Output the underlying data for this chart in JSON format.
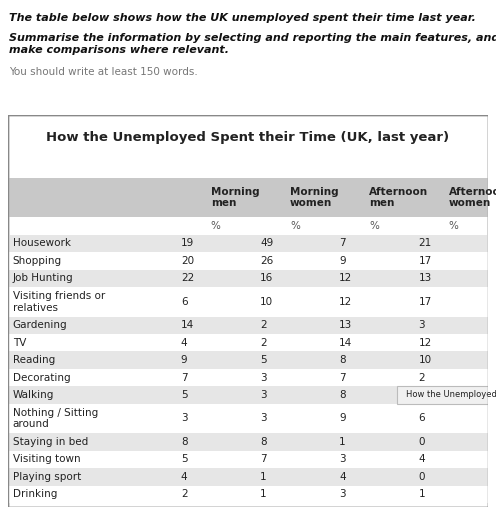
{
  "title": "How the Unemployed Spent their Time (UK, last year)",
  "prompt_line1": "The table below shows how the UK unemployed spent their time last year.",
  "prompt_line2": "Summarise the information by selecting and reporting the main features, and\nmake comparisons where relevant.",
  "prompt_line3": "You should write at least 150 words.",
  "columns": [
    "",
    "Morning\nmen",
    "Morning\nwomen",
    "Afternoon\nmen",
    "Afternoon\nwomen"
  ],
  "col_units": [
    "",
    "%",
    "%",
    "%",
    "%"
  ],
  "rows": [
    [
      "Housework",
      19,
      49,
      7,
      21,
      false
    ],
    [
      "Shopping",
      20,
      26,
      9,
      17,
      false
    ],
    [
      "Job Hunting",
      22,
      16,
      12,
      13,
      false
    ],
    [
      "Visiting friends or\nrelatives",
      6,
      10,
      12,
      17,
      true
    ],
    [
      "Gardening",
      14,
      2,
      13,
      3,
      false
    ],
    [
      "TV",
      4,
      2,
      14,
      12,
      false
    ],
    [
      "Reading",
      9,
      5,
      8,
      10,
      false
    ],
    [
      "Decorating",
      7,
      3,
      7,
      2,
      false
    ],
    [
      "Walking",
      5,
      3,
      8,
      "",
      false
    ],
    [
      "Nothing / Sitting\naround",
      3,
      3,
      9,
      6,
      true
    ],
    [
      "Staying in bed",
      8,
      8,
      1,
      0,
      false
    ],
    [
      "Visiting town",
      5,
      7,
      3,
      4,
      false
    ],
    [
      "Playing sport",
      4,
      1,
      4,
      0,
      false
    ],
    [
      "Drinking",
      2,
      1,
      3,
      1,
      false
    ]
  ],
  "tooltip_text": "How the Unemployed Spend their",
  "header_bg": "#c8c8c8",
  "row_bg_even": "#e6e6e6",
  "row_bg_odd": "#ffffff",
  "border_color": "#888888",
  "text_color": "#222222",
  "title_fontsize": 9.5,
  "cell_fontsize": 7.5,
  "header_fontsize": 7.5,
  "prompt1_fontsize": 8.0,
  "prompt2_fontsize": 8.0,
  "prompt3_fontsize": 7.5
}
